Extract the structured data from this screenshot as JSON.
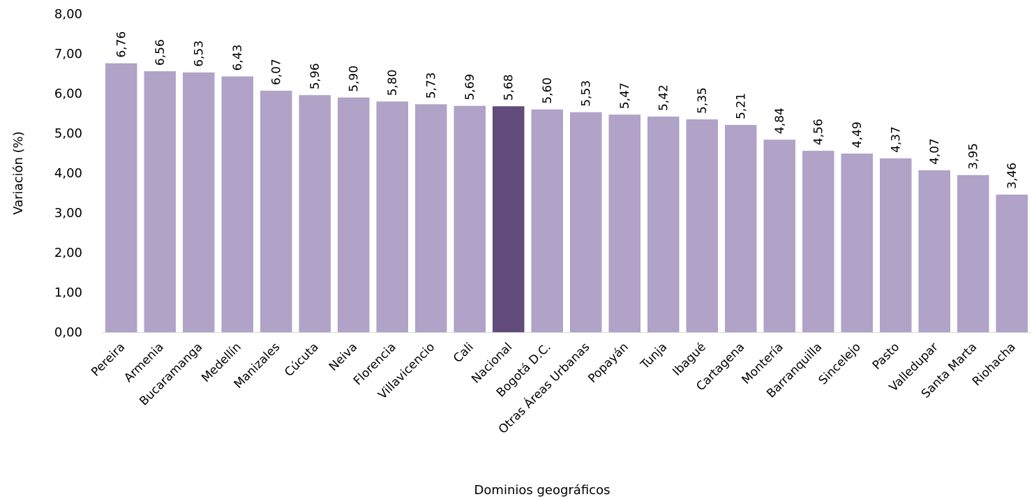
{
  "chart_data": {
    "type": "bar",
    "categories": [
      "Pereira",
      "Armenia",
      "Bucaramanga",
      "Medellín",
      "Manizales",
      "Cúcuta",
      "Neiva",
      "Florencia",
      "Villavicencio",
      "Cali",
      "Nacional",
      "Bogotá D.C.",
      "Otras Áreas Urbanas",
      "Popayán",
      "Tunja",
      "Ibagué",
      "Cartagena",
      "Montería",
      "Barranquilla",
      "Sincelejo",
      "Pasto",
      "Valledupar",
      "Santa Marta",
      "Riohacha"
    ],
    "values": [
      6.76,
      6.56,
      6.53,
      6.43,
      6.07,
      5.96,
      5.9,
      5.8,
      5.73,
      5.69,
      5.68,
      5.6,
      5.53,
      5.47,
      5.42,
      5.35,
      5.21,
      4.84,
      4.56,
      4.49,
      4.37,
      4.07,
      3.95,
      3.46
    ],
    "data_labels": [
      "6,76",
      "6,56",
      "6,53",
      "6,43",
      "6,07",
      "5,96",
      "5,90",
      "5,80",
      "5,73",
      "5,69",
      "5,68",
      "5,60",
      "5,53",
      "5,47",
      "5,42",
      "5,35",
      "5,21",
      "4,84",
      "4,56",
      "4,49",
      "4,37",
      "4,07",
      "3,95",
      "3,46"
    ],
    "y_ticks": [
      "0,00",
      "1,00",
      "2,00",
      "3,00",
      "4,00",
      "5,00",
      "6,00",
      "7,00",
      "8,00"
    ],
    "ylim": [
      0,
      8
    ],
    "xlabel": "Dominios geográficos",
    "ylabel": "Variación (%)",
    "colors": {
      "bar": "#b1a2c8",
      "highlight": "#634b7c"
    },
    "highlight_category": "Nacional",
    "grid": false,
    "legend": "none"
  }
}
